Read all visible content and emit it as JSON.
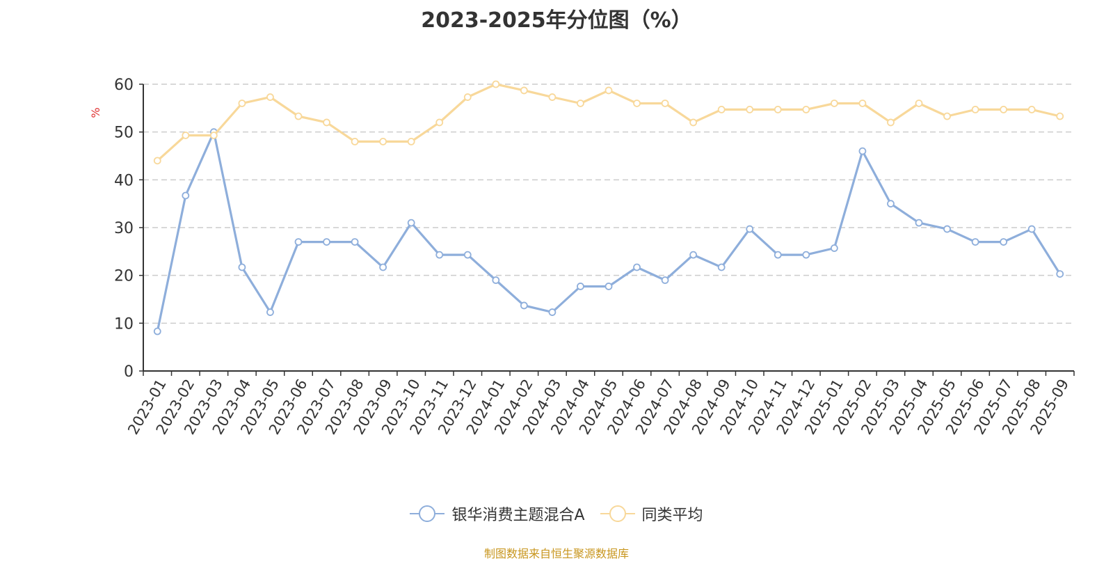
{
  "chart_data": {
    "type": "line",
    "title": "2023-2025年分位图（%）",
    "ylabel": "%",
    "ylim": [
      0,
      60
    ],
    "yticks": [
      0,
      10,
      20,
      30,
      40,
      50,
      60
    ],
    "grid": true,
    "legend_position": "bottom",
    "categories": [
      "2023-01",
      "2023-02",
      "2023-03",
      "2023-04",
      "2023-05",
      "2023-06",
      "2023-07",
      "2023-08",
      "2023-09",
      "2023-10",
      "2023-11",
      "2023-12",
      "2024-01",
      "2024-02",
      "2024-03",
      "2024-04",
      "2024-05",
      "2024-06",
      "2024-07",
      "2024-08",
      "2024-09",
      "2024-10",
      "2024-11",
      "2024-12",
      "2025-01",
      "2025-02",
      "2025-03",
      "2025-04",
      "2025-05",
      "2025-06",
      "2025-07",
      "2025-08",
      "2025-09"
    ],
    "series": [
      {
        "name": "银华消费主题混合A",
        "color": "#8eaedb",
        "values": [
          8.3,
          36.7,
          50.0,
          21.7,
          12.3,
          27.0,
          27.0,
          27.0,
          21.7,
          31.0,
          24.3,
          24.3,
          19.0,
          13.7,
          12.3,
          17.7,
          17.7,
          21.7,
          19.0,
          24.3,
          21.7,
          29.7,
          24.3,
          24.3,
          25.7,
          46.0,
          35.0,
          31.0,
          29.7,
          27.0,
          27.0,
          29.7,
          20.3
        ]
      },
      {
        "name": "同类平均",
        "color": "#f8d89a",
        "values": [
          44.0,
          49.3,
          49.3,
          56.0,
          57.3,
          53.3,
          52.0,
          48.0,
          48.0,
          48.0,
          52.0,
          57.3,
          60.0,
          58.7,
          57.3,
          56.0,
          58.7,
          56.0,
          56.0,
          52.0,
          54.7,
          54.7,
          54.7,
          54.7,
          56.0,
          56.0,
          52.0,
          56.0,
          53.3,
          54.7,
          54.7,
          54.7,
          53.3
        ]
      }
    ]
  },
  "source_text": "制图数据来自恒生聚源数据库",
  "colors": {
    "axis": "#333333",
    "grid": "#cccccc",
    "ylabel": "#e03030",
    "source": "#c8961e"
  }
}
